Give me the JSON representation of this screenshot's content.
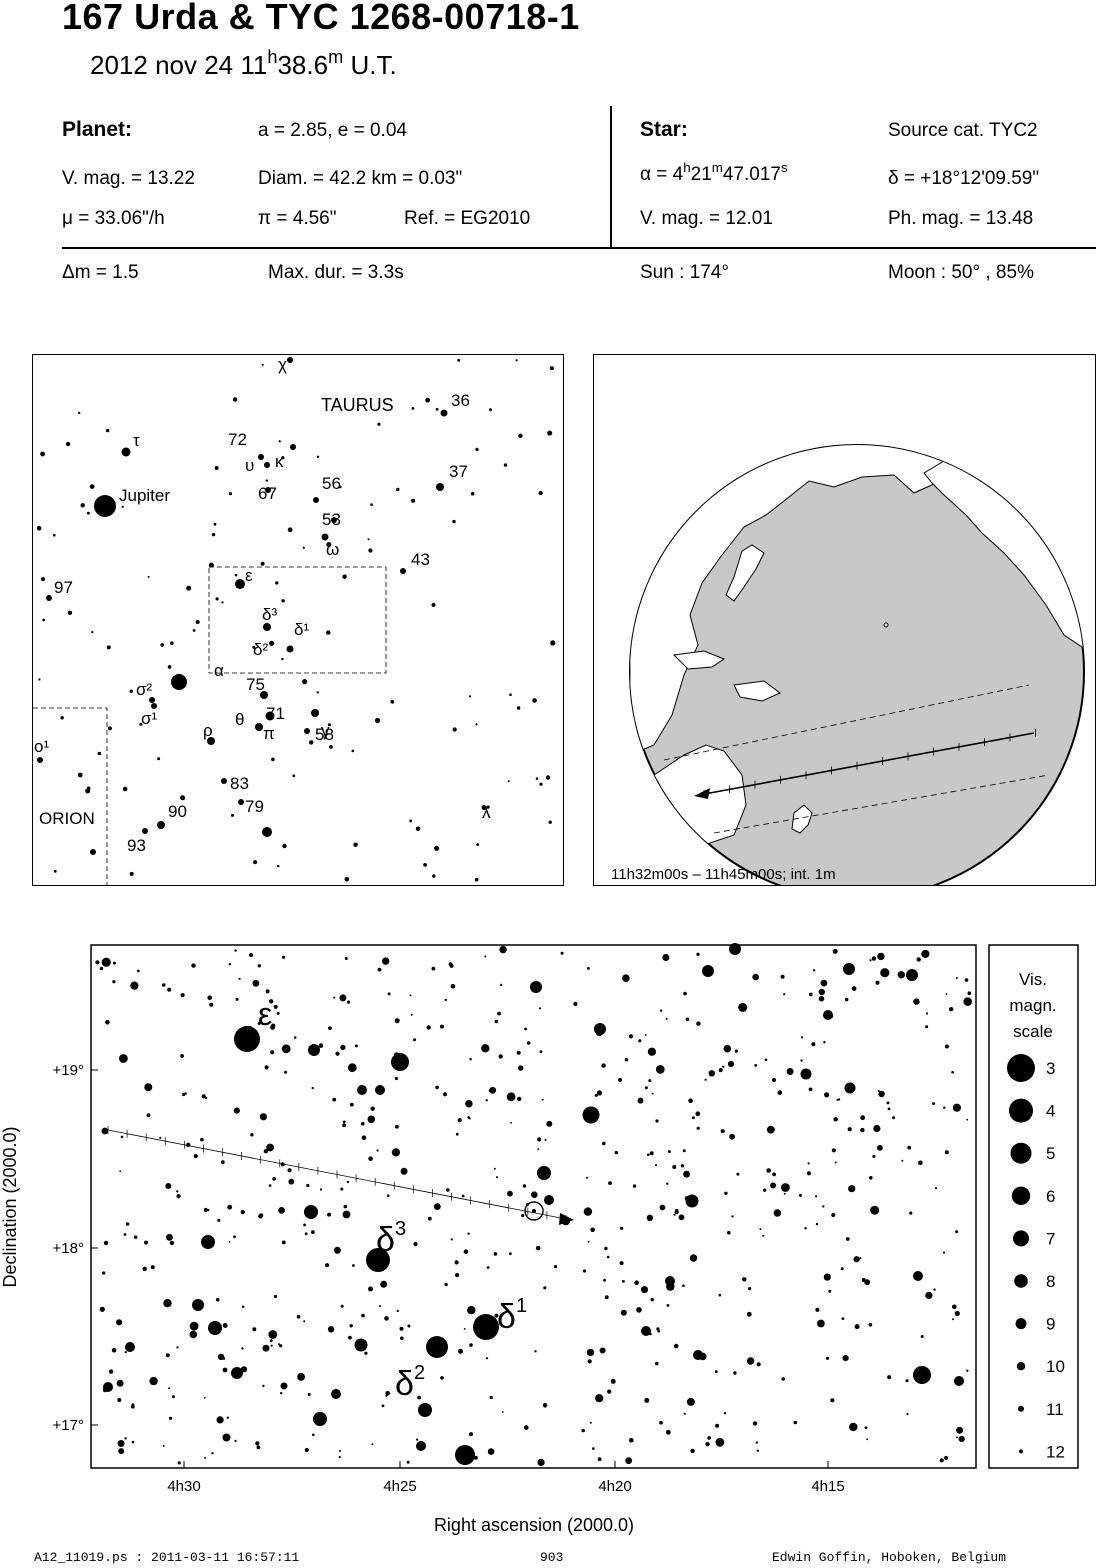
{
  "header": {
    "title": "167 Urda  &  TYC 1268-00718-1",
    "date": "2012 nov 24  11",
    "time_h": "h",
    "time_m_val": "38.6",
    "time_m": "m",
    "time_ut": " U.T."
  },
  "planet": {
    "heading": "Planet:",
    "orbit": "a = 2.85, e = 0.04",
    "vmag": "V. mag. = 13.22",
    "diam": "Diam. = 42.2 km = 0.03\"",
    "mu": "μ =  33.06\"/h",
    "pi": "π =  4.56\"",
    "ref": "Ref. = EG2010"
  },
  "star": {
    "heading": "Star:",
    "source": "Source cat.  TYC2",
    "alpha_label": "α =  4",
    "alpha_h": "h",
    "alpha_m_val": "21",
    "alpha_m": "m",
    "alpha_s_val": "47.017",
    "alpha_s": "s",
    "delta": "δ = +18°12'09.59\"",
    "vmag": "V. mag. = 12.01",
    "phmag": "Ph. mag. = 13.48"
  },
  "event": {
    "dm": "Δm = 1.5",
    "maxdur": "Max. dur. = 3.3s",
    "sun": "Sun : 174°",
    "moon": "Moon :  50° , 85%"
  },
  "finder": {
    "labels": [
      {
        "t": "χ"
      },
      {
        "t": "TAURUS"
      },
      {
        "t": "36"
      },
      {
        "t": "τ"
      },
      {
        "t": "72"
      },
      {
        "t": "υ"
      },
      {
        "t": "κ"
      },
      {
        "t": "37"
      },
      {
        "t": "56"
      },
      {
        "t": "67"
      },
      {
        "t": "Jupiter"
      },
      {
        "t": "53"
      },
      {
        "t": "ω"
      },
      {
        "t": "43"
      },
      {
        "t": "ε"
      },
      {
        "t": "97"
      },
      {
        "t": "δ³"
      },
      {
        "t": "δ¹"
      },
      {
        "t": "δ²"
      },
      {
        "t": "α"
      },
      {
        "t": "σ²"
      },
      {
        "t": "75"
      },
      {
        "t": "σ¹"
      },
      {
        "t": "γ"
      },
      {
        "t": "θ"
      },
      {
        "t": "71"
      },
      {
        "t": "ρ"
      },
      {
        "t": "π"
      },
      {
        "t": "58"
      },
      {
        "t": "ο¹"
      },
      {
        "t": "83"
      },
      {
        "t": "79"
      },
      {
        "t": "90"
      },
      {
        "t": "λ"
      },
      {
        "t": "ORION"
      },
      {
        "t": "93"
      }
    ]
  },
  "globe": {
    "caption": "11h32m00s – 11h45m00s; int.  1m"
  },
  "chart_data": {
    "type": "scatter",
    "xlabel": "Right ascension (2000.0)",
    "ylabel": "Declination (2000.0)",
    "x_ticks": [
      "4h30",
      "4h25",
      "4h20",
      "4h15"
    ],
    "y_ticks": [
      "+19°",
      "+18°",
      "+17°"
    ],
    "star_labels": [
      "ε",
      "δ³",
      "δ¹",
      "δ²"
    ],
    "target_star": {
      "ra": "4h21m47.017s",
      "dec": "+18°12'09.59\""
    },
    "legend": {
      "title": [
        "Vis.",
        "magn.",
        "scale"
      ],
      "magnitudes": [
        3,
        4,
        5,
        6,
        7,
        8,
        9,
        10,
        11,
        12
      ]
    }
  },
  "footer": {
    "left": "A12_11019.ps : 2011-03-11 16:57:11",
    "center": "903",
    "right": "Edwin Goffin, Hoboken, Belgium"
  }
}
